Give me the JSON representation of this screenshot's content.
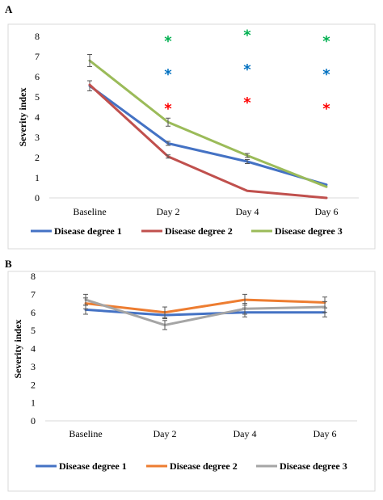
{
  "chart_data": [
    {
      "panel": "A",
      "type": "line",
      "ylabel": "Severity index",
      "ylim": [
        0,
        8
      ],
      "yticks": [
        "0",
        "1",
        "2",
        "3",
        "4",
        "5",
        "6",
        "7",
        "8"
      ],
      "categories": [
        "Baseline",
        "Day 2",
        "Day 4",
        "Day 6"
      ],
      "grid": false,
      "legend_position": "bottom",
      "series": [
        {
          "name": "Disease degree 1",
          "color": "#4472C4",
          "values": [
            5.55,
            2.7,
            1.8,
            0.65
          ],
          "errors": [
            0.25,
            0.1,
            0.1,
            0
          ]
        },
        {
          "name": "Disease degree 2",
          "color": "#C0504D",
          "values": [
            5.6,
            2.05,
            0.35,
            0.0
          ],
          "errors": [
            0,
            0.08,
            0,
            0
          ]
        },
        {
          "name": "Disease degree 3",
          "color": "#9BBB59",
          "values": [
            6.8,
            3.75,
            2.1,
            0.55
          ],
          "errors": [
            0.3,
            0.2,
            0.1,
            0
          ]
        }
      ],
      "annotations": [
        {
          "text": "*",
          "category": "Day 2",
          "y": 7.85,
          "color": "#00B050"
        },
        {
          "text": "*",
          "category": "Day 4",
          "y": 8.15,
          "color": "#00B050"
        },
        {
          "text": "*",
          "category": "Day 6",
          "y": 7.85,
          "color": "#00B050"
        },
        {
          "text": "*",
          "category": "Day 2",
          "y": 6.2,
          "color": "#0070C0"
        },
        {
          "text": "*",
          "category": "Day 4",
          "y": 6.45,
          "color": "#0070C0"
        },
        {
          "text": "*",
          "category": "Day 6",
          "y": 6.2,
          "color": "#0070C0"
        },
        {
          "text": "*",
          "category": "Day 2",
          "y": 4.5,
          "color": "#FF0000"
        },
        {
          "text": "*",
          "category": "Day 4",
          "y": 4.8,
          "color": "#FF0000"
        },
        {
          "text": "*",
          "category": "Day 6",
          "y": 4.5,
          "color": "#FF0000"
        }
      ]
    },
    {
      "panel": "B",
      "type": "line",
      "ylabel": "Severity index",
      "ylim": [
        0,
        8
      ],
      "yticks": [
        "0",
        "1",
        "2",
        "3",
        "4",
        "5",
        "6",
        "7",
        "8"
      ],
      "categories": [
        "Baseline",
        "Day 2",
        "Day 4",
        "Day 6"
      ],
      "grid": false,
      "legend_position": "bottom",
      "series": [
        {
          "name": "Disease degree 1",
          "color": "#4472C4",
          "values": [
            6.15,
            5.85,
            6.0,
            6.0
          ],
          "errors": [
            0.25,
            0.2,
            0.25,
            0.25
          ]
        },
        {
          "name": "Disease degree 2",
          "color": "#ED7D31",
          "values": [
            6.5,
            6.0,
            6.7,
            6.55
          ],
          "errors": [
            0.3,
            0.3,
            0.3,
            0.3
          ]
        },
        {
          "name": "Disease degree 3",
          "color": "#A5A5A5",
          "values": [
            6.7,
            5.3,
            6.2,
            6.3
          ],
          "errors": [
            0.3,
            0.25,
            0.3,
            0.3
          ]
        }
      ]
    }
  ]
}
